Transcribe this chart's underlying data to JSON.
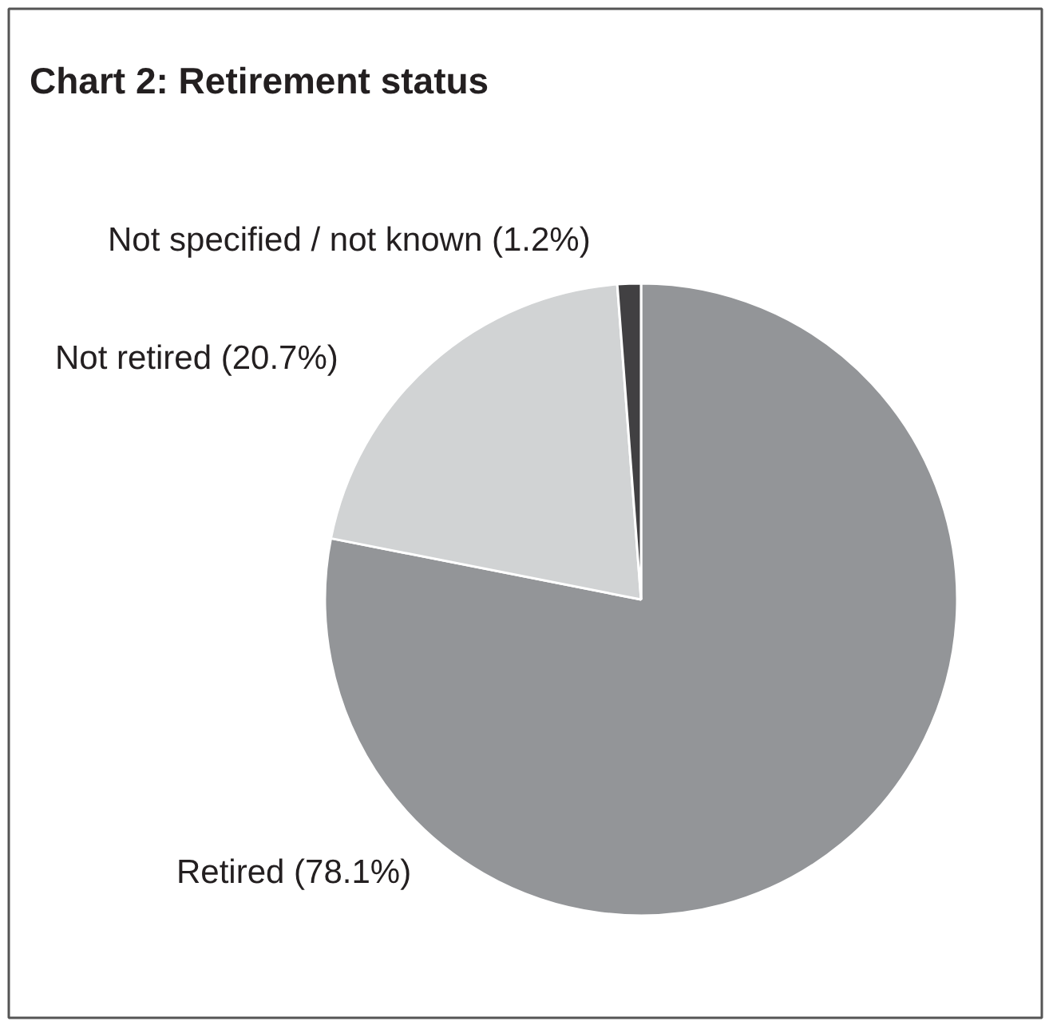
{
  "chart_data": {
    "type": "pie",
    "title": "Chart 2: Retirement status",
    "categories": [
      "Retired (78.1%)",
      "Not retired (20.7%)",
      "Not specified / not known (1.2%)"
    ],
    "values": [
      78.1,
      20.7,
      1.2
    ],
    "colors": [
      "#939598",
      "#d1d3d4",
      "#414042"
    ]
  }
}
